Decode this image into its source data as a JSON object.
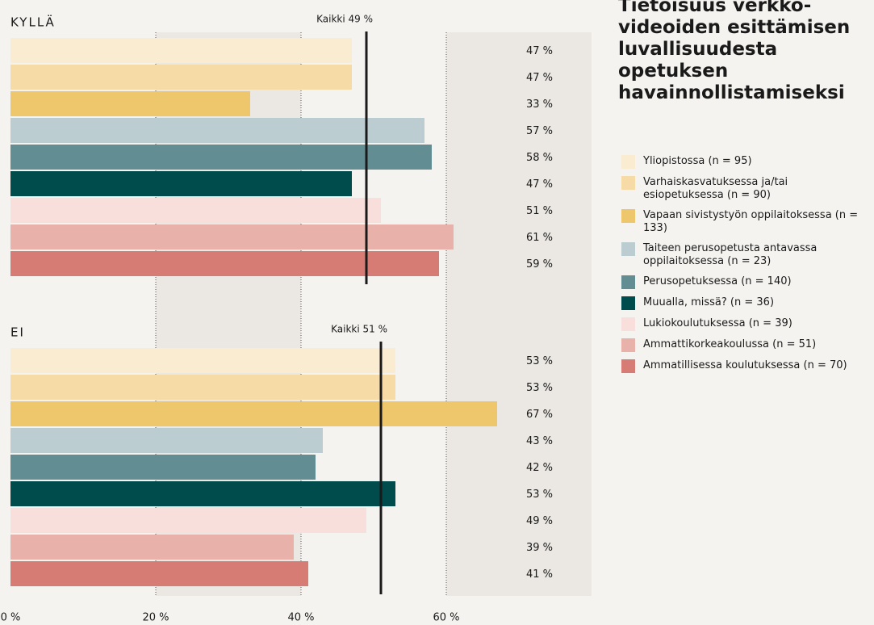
{
  "title": "Tietoisuus verkko­videoiden esittämisen luvallisuudesta opetuksen havainnollistamiseksi",
  "legend": {
    "names": [
      "Yliopistossa (n = 95)",
      "Varhaiskasvatuksessa ja/tai esiopetuksessa (n = 90)",
      "Vapaan sivistystyön oppilaitoksessa (n = 133)",
      "Taiteen perusopetusta antavassa oppilaitoksessa (n = 23)",
      "Perusopetuksessa (n = 140)",
      "Muualla, missä? (n = 36)",
      "Lukiokoulutuksessa (n = 39)",
      "Ammattikorkeakoulussa (n = 51)",
      "Ammatillisessa koulutuksessa (n = 70)"
    ],
    "colors": [
      "#faecd0",
      "#f7dba7",
      "#eec66b",
      "#bccdd2",
      "#628e93",
      "#004b4c",
      "#f8dfdb",
      "#e8b2ab",
      "#d67c74"
    ]
  },
  "chart_data": [
    {
      "type": "bar",
      "orientation": "horizontal",
      "title": "KYLLÄ",
      "values": [
        47,
        47,
        33,
        57,
        58,
        47,
        51,
        61,
        59
      ],
      "value_labels": [
        "47 %",
        "47 %",
        "33 %",
        "57 %",
        "58 %",
        "47 %",
        "51 %",
        "61 %",
        "59 %"
      ],
      "reference": {
        "value": 49,
        "label": "Kaikki 49 %"
      },
      "xlim": [
        0,
        80
      ]
    },
    {
      "type": "bar",
      "orientation": "horizontal",
      "title": "EI",
      "values": [
        53,
        53,
        67,
        43,
        42,
        53,
        49,
        39,
        41
      ],
      "value_labels": [
        "53 %",
        "53 %",
        "67 %",
        "43 %",
        "42 %",
        "53 %",
        "49 %",
        "39 %",
        "41 %"
      ],
      "reference": {
        "value": 51,
        "label": "Kaikki 51 %"
      },
      "xlim": [
        0,
        80
      ],
      "xticks": [
        {
          "value": 0,
          "label": "0 %"
        },
        {
          "value": 20,
          "label": "20 %"
        },
        {
          "value": 40,
          "label": "40 %"
        },
        {
          "value": 60,
          "label": "60 %"
        }
      ]
    }
  ]
}
